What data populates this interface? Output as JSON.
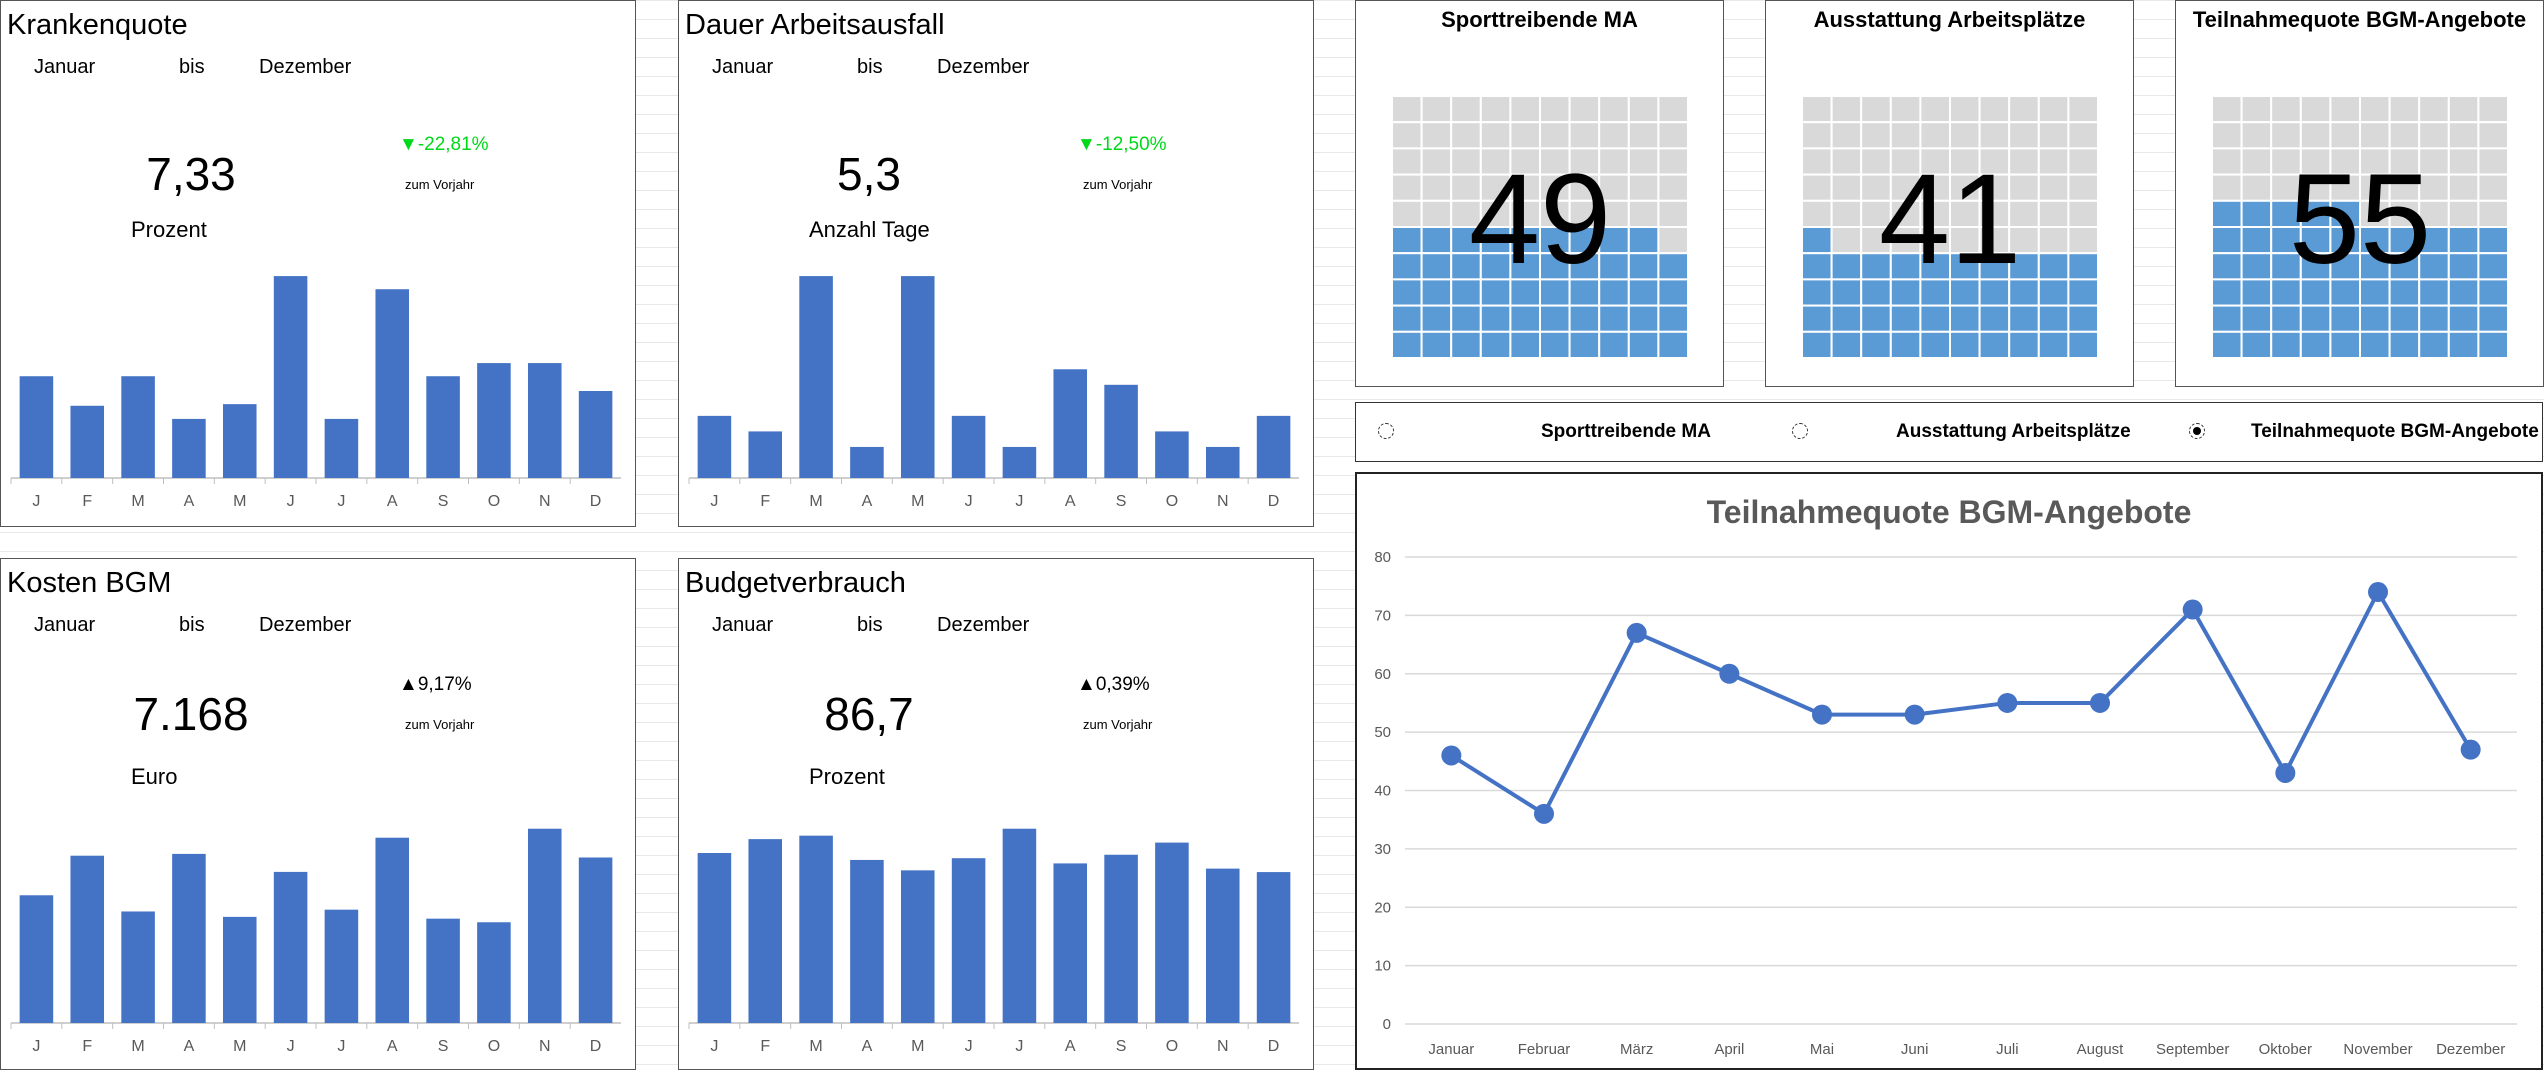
{
  "kpis": [
    {
      "title": "Krankenquote",
      "from": "Januar",
      "to_word": "bis",
      "to": "Dezember",
      "value": "7,33",
      "unit": "Prozent",
      "delta": "-22,81%",
      "delta_dir": "down",
      "delta_note": "zum Vorjahr",
      "months": [
        "J",
        "F",
        "M",
        "A",
        "M",
        "J",
        "J",
        "A",
        "S",
        "O",
        "N",
        "D"
      ],
      "bars": [
        6.2,
        4.4,
        6.2,
        3.6,
        4.5,
        12.3,
        3.6,
        11.5,
        6.2,
        7.0,
        7.0,
        5.3
      ]
    },
    {
      "title": "Dauer Arbeitsausfall",
      "from": "Januar",
      "to_word": "bis",
      "to": "Dezember",
      "value": "5,3",
      "unit": "Anzahl Tage",
      "delta": "-12,50%",
      "delta_dir": "down",
      "delta_note": "zum Vorjahr",
      "months": [
        "J",
        "F",
        "M",
        "A",
        "M",
        "J",
        "J",
        "A",
        "S",
        "O",
        "N",
        "D"
      ],
      "bars": [
        4.0,
        3.0,
        13.0,
        2.0,
        13.0,
        4.0,
        2.0,
        7.0,
        6.0,
        3.0,
        2.0,
        4.0
      ]
    },
    {
      "title": "Kosten BGM",
      "from": "Januar",
      "to_word": "bis",
      "to": "Dezember",
      "value": "7.168",
      "unit": "Euro",
      "delta": "9,17%",
      "delta_dir": "up",
      "delta_note": "zum Vorjahr",
      "months": [
        "J",
        "F",
        "M",
        "A",
        "M",
        "J",
        "J",
        "A",
        "S",
        "O",
        "N",
        "D"
      ],
      "bars": [
        7.1,
        9.3,
        6.2,
        9.4,
        5.9,
        8.4,
        6.3,
        10.3,
        5.8,
        5.6,
        10.8,
        9.2
      ]
    },
    {
      "title": "Budgetverbrauch",
      "from": "Januar",
      "to_word": "bis",
      "to": "Dezember",
      "value": "86,7",
      "unit": "Prozent",
      "delta": "0,39%",
      "delta_dir": "up",
      "delta_note": "zum Vorjahr",
      "months": [
        "J",
        "F",
        "M",
        "A",
        "M",
        "J",
        "J",
        "A",
        "S",
        "O",
        "N",
        "D"
      ],
      "bars": [
        9.8,
        10.6,
        10.8,
        9.4,
        8.8,
        9.5,
        11.2,
        9.2,
        9.7,
        10.4,
        8.9,
        8.7
      ]
    }
  ],
  "gauges": [
    {
      "title": "Sporttreibende MA",
      "value": "49",
      "fill": 49
    },
    {
      "title": "Ausstattung Arbeitsplätze",
      "value": "41",
      "fill": 41
    },
    {
      "title": "Teilnahmequote BGM-Angebote",
      "value": "55",
      "fill": 55
    }
  ],
  "selector": {
    "options": [
      "Sporttreibende MA",
      "Ausstattung Arbeitsplätze",
      "Teilnahmequote BGM-Angebote"
    ],
    "selected": 2
  },
  "colors": {
    "bar": "#4472c4",
    "gauge_fill": "#5b9bd5",
    "gauge_empty": "#d9d9d9",
    "delta_down": "#00d81a"
  },
  "chart_data": {
    "type": "line",
    "title": "Teilnahmequote BGM-Angebote",
    "categories": [
      "Januar",
      "Februar",
      "März",
      "April",
      "Mai",
      "Juni",
      "Juli",
      "August",
      "September",
      "Oktober",
      "November",
      "Dezember"
    ],
    "series": [
      {
        "values": [
          46,
          36,
          67,
          60,
          53,
          53,
          55,
          55,
          71,
          43,
          74,
          47
        ]
      }
    ],
    "ylim": [
      0,
      80
    ],
    "yticks": [
      "0",
      "10",
      "20",
      "30",
      "40",
      "50",
      "60",
      "70",
      "80"
    ],
    "grid": true
  }
}
